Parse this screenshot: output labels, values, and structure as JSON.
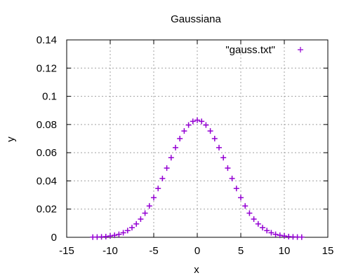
{
  "chart_data": {
    "type": "scatter",
    "title": "Gaussiana",
    "xlabel": "x",
    "ylabel": "y",
    "xlim": [
      -15,
      15
    ],
    "ylim": [
      0,
      0.14
    ],
    "xticks": [
      -15,
      -10,
      -5,
      0,
      5,
      10,
      15
    ],
    "yticks": [
      0,
      0.02,
      0.04,
      0.06,
      0.08,
      0.1,
      0.12,
      0.14
    ],
    "xtick_labels": [
      "-15",
      "-10",
      "-5",
      "0",
      "5",
      "10",
      "15"
    ],
    "ytick_labels": [
      "0",
      "0.02",
      "0.04",
      "0.06",
      "0.08",
      "0.1",
      "0.12",
      "0.14"
    ],
    "grid": true,
    "legend_position": "top-right",
    "series": [
      {
        "name": "\"gauss.txt\"",
        "color": "#9400d3",
        "marker": "plus",
        "x": [
          -12,
          -11.5,
          -11,
          -10.5,
          -10,
          -9.5,
          -9,
          -8.5,
          -8,
          -7.5,
          -7,
          -6.5,
          -6,
          -5.5,
          -5,
          -4.5,
          -4,
          -3.5,
          -3,
          -2.5,
          -2,
          -1.5,
          -1,
          -0.5,
          0,
          0.5,
          1,
          1.5,
          2,
          2.5,
          3,
          3.5,
          4,
          4.5,
          5,
          5.5,
          6,
          6.5,
          7,
          7.5,
          8,
          8.5,
          9,
          9.5,
          10,
          10.5,
          11,
          11.5,
          12
        ],
        "y": [
          0.0001,
          0.0002,
          0.0003,
          0.0005,
          0.0009,
          0.0014,
          0.0021,
          0.0032,
          0.0048,
          0.0068,
          0.0095,
          0.0129,
          0.0171,
          0.0222,
          0.0281,
          0.0346,
          0.0417,
          0.0491,
          0.0565,
          0.0636,
          0.07,
          0.0754,
          0.0796,
          0.0822,
          0.0831,
          0.0822,
          0.0796,
          0.0754,
          0.07,
          0.0636,
          0.0565,
          0.0491,
          0.0417,
          0.0346,
          0.0281,
          0.0222,
          0.0171,
          0.0129,
          0.0095,
          0.0068,
          0.0048,
          0.0032,
          0.0021,
          0.0014,
          0.0009,
          0.0005,
          0.0003,
          0.0002,
          0.0001
        ]
      }
    ]
  }
}
